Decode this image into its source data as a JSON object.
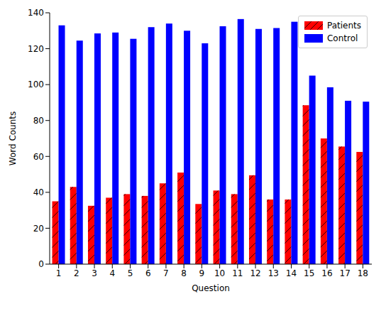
{
  "chart_data": {
    "type": "bar",
    "x_label": "Question",
    "y_label": "Word Counts",
    "categories": [
      "1",
      "2",
      "3",
      "4",
      "5",
      "6",
      "7",
      "8",
      "9",
      "10",
      "11",
      "12",
      "13",
      "14",
      "15",
      "16",
      "17",
      "18"
    ],
    "series": [
      {
        "name": "Patients",
        "color": "#ff0000",
        "values": [
          35,
          43,
          32.5,
          37,
          39,
          38,
          45,
          51,
          33.5,
          41,
          39,
          49.5,
          36,
          36,
          88.5,
          70,
          65.5,
          62.5
        ]
      },
      {
        "name": "Control",
        "color": "#0000ff",
        "values": [
          133,
          124.5,
          128.5,
          129,
          125.5,
          132,
          134,
          130,
          123,
          132.5,
          136.5,
          131,
          131.5,
          135,
          105,
          98.5,
          91,
          90.5
        ]
      }
    ],
    "ylim": [
      0,
      140
    ],
    "yticks": [
      0,
      20,
      40,
      60,
      80,
      100,
      120,
      140
    ],
    "legend": "upper right",
    "grid": false
  }
}
